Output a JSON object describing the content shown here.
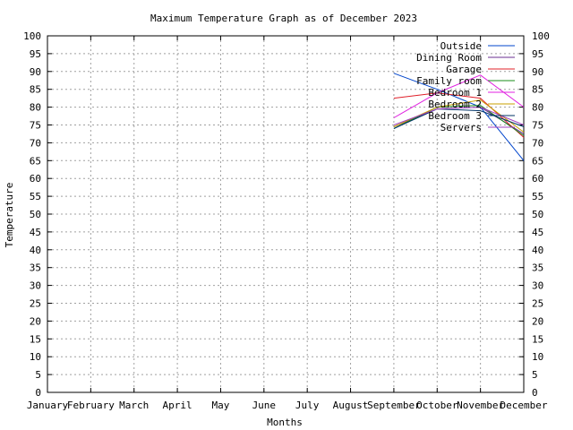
{
  "chart_data": {
    "type": "line",
    "title": "Maximum Temperature Graph as of December 2023",
    "xlabel": "Months",
    "ylabel": "Temperature",
    "categories": [
      "January",
      "February",
      "March",
      "April",
      "May",
      "June",
      "July",
      "August",
      "September",
      "October",
      "November",
      "December"
    ],
    "ylim": [
      0,
      100
    ],
    "ytick_step": 5,
    "grid": true,
    "legend_position": "top-right",
    "series": [
      {
        "name": "Outside",
        "color": "#0044cc",
        "values": [
          null,
          null,
          null,
          null,
          null,
          null,
          null,
          null,
          89.5,
          85,
          80,
          65
        ]
      },
      {
        "name": "Dining Room",
        "color": "#6a2c91",
        "values": [
          null,
          null,
          null,
          null,
          null,
          null,
          null,
          null,
          74.5,
          79.5,
          80,
          72.5
        ]
      },
      {
        "name": "Garage",
        "color": "#e0202a",
        "values": [
          null,
          null,
          null,
          null,
          null,
          null,
          null,
          null,
          82.5,
          84,
          82.5,
          71.5
        ]
      },
      {
        "name": "Family room",
        "color": "#1a8c1a",
        "values": [
          null,
          null,
          null,
          null,
          null,
          null,
          null,
          null,
          74,
          80,
          80.5,
          72
        ]
      },
      {
        "name": "Bedroom 1",
        "color": "#e020e0",
        "values": [
          null,
          null,
          null,
          null,
          null,
          null,
          null,
          null,
          77,
          84,
          89,
          80
        ]
      },
      {
        "name": "Bedroom 2",
        "color": "#c8a000",
        "values": [
          null,
          null,
          null,
          null,
          null,
          null,
          null,
          null,
          74.5,
          80,
          82,
          73
        ]
      },
      {
        "name": "Bedroom 3",
        "color": "#003366",
        "values": [
          null,
          null,
          null,
          null,
          null,
          null,
          null,
          null,
          74,
          79.5,
          79,
          74.5
        ]
      },
      {
        "name": "Servers",
        "color": "#a040c0",
        "values": [
          null,
          null,
          null,
          null,
          null,
          null,
          null,
          null,
          75,
          79.5,
          80,
          75
        ]
      }
    ]
  }
}
